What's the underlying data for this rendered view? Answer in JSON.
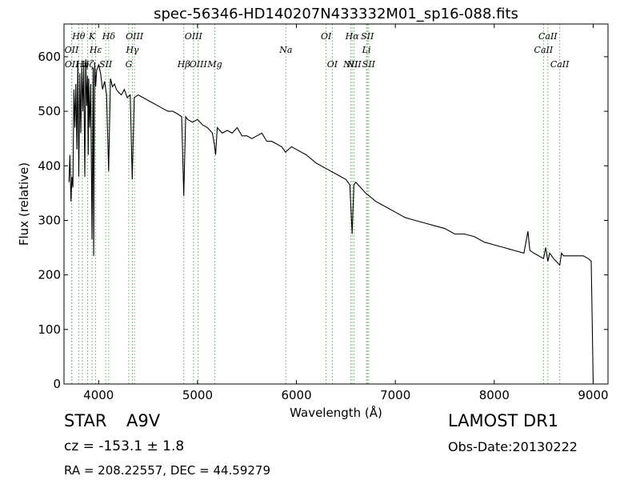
{
  "chart_data": {
    "type": "line",
    "title": "spec-56346-HD140207N433332M01_sp16-088.fits",
    "xlabel": "Wavelength (Å)",
    "ylabel": "Flux (relative)",
    "xlim": [
      3650,
      9150
    ],
    "ylim": [
      0,
      660
    ],
    "xticks": [
      4000,
      5000,
      6000,
      7000,
      8000,
      9000
    ],
    "yticks": [
      0,
      100,
      200,
      300,
      400,
      500,
      600
    ],
    "grid": false,
    "series": [
      {
        "color": "#000000",
        "x": [
          3700,
          3710,
          3720,
          3730,
          3740,
          3750,
          3760,
          3770,
          3780,
          3790,
          3800,
          3810,
          3820,
          3830,
          3840,
          3850,
          3860,
          3870,
          3880,
          3889,
          3895,
          3900,
          3910,
          3920,
          3933,
          3945,
          3950,
          3960,
          3970,
          3980,
          4000,
          4020,
          4040,
          4060,
          4080,
          4101,
          4120,
          4140,
          4160,
          4180,
          4200,
          4230,
          4260,
          4290,
          4320,
          4340,
          4360,
          4400,
          4450,
          4500,
          4550,
          4600,
          4650,
          4700,
          4750,
          4800,
          4840,
          4861,
          4880,
          4900,
          4950,
          5000,
          5050,
          5100,
          5150,
          5170,
          5183,
          5200,
          5250,
          5300,
          5350,
          5400,
          5450,
          5500,
          5550,
          5600,
          5650,
          5700,
          5750,
          5800,
          5850,
          5890,
          5950,
          6000,
          6100,
          6200,
          6300,
          6400,
          6500,
          6540,
          6563,
          6580,
          6600,
          6700,
          6800,
          6900,
          7000,
          7100,
          7200,
          7300,
          7400,
          7500,
          7600,
          7700,
          7800,
          7900,
          8000,
          8100,
          8200,
          8300,
          8340,
          8360,
          8400,
          8498,
          8520,
          8542,
          8560,
          8600,
          8662,
          8680,
          8700,
          8800,
          8900,
          8950,
          8980,
          8990,
          9000,
          9010,
          9020
        ],
        "y": [
          370,
          420,
          335,
          380,
          360,
          540,
          470,
          550,
          430,
          590,
          380,
          570,
          460,
          580,
          500,
          585,
          380,
          595,
          510,
          565,
          420,
          560,
          470,
          550,
          265,
          580,
          235,
          590,
          545,
          575,
          585,
          570,
          540,
          555,
          530,
          390,
          560,
          545,
          550,
          540,
          535,
          530,
          540,
          525,
          530,
          375,
          525,
          530,
          525,
          520,
          515,
          510,
          505,
          500,
          500,
          495,
          490,
          345,
          490,
          485,
          480,
          485,
          475,
          470,
          460,
          440,
          420,
          470,
          460,
          465,
          460,
          470,
          455,
          455,
          450,
          455,
          460,
          445,
          445,
          440,
          435,
          425,
          435,
          430,
          420,
          405,
          395,
          385,
          375,
          365,
          275,
          365,
          370,
          350,
          335,
          325,
          315,
          305,
          300,
          295,
          290,
          285,
          275,
          275,
          270,
          260,
          255,
          250,
          245,
          240,
          280,
          245,
          240,
          230,
          250,
          225,
          240,
          230,
          218,
          240,
          235,
          235,
          235,
          230,
          225,
          120,
          0,
          0,
          0
        ]
      }
    ],
    "line_markers": [
      {
        "label": "Hθ",
        "x": 3798
      },
      {
        "label": "K",
        "x": 3934
      },
      {
        "label": "Hδ",
        "x": 4102
      },
      {
        "label": "OIII",
        "x": 4363
      },
      {
        "label": "OIII",
        "x": 4959
      },
      {
        "label": "OI",
        "x": 6300
      },
      {
        "label": "Hα",
        "x": 6563
      },
      {
        "label": "SII",
        "x": 6717
      },
      {
        "label": "CaII",
        "x": 8542
      },
      {
        "label": "OII",
        "x": 3727
      },
      {
        "label": "Hε",
        "x": 3970
      },
      {
        "label": "Hγ",
        "x": 4341
      },
      {
        "label": "Na",
        "x": 5893
      },
      {
        "label": "Li",
        "x": 6708
      },
      {
        "label": "CaII",
        "x": 8498
      },
      {
        "label": "OII",
        "x": 3729
      },
      {
        "label": "Hζ",
        "x": 3889
      },
      {
        "label": "Hη",
        "x": 3835
      },
      {
        "label": "SII",
        "x": 4072
      },
      {
        "label": "G",
        "x": 4305
      },
      {
        "label": "Hβ",
        "x": 4861
      },
      {
        "label": "OIII",
        "x": 5007
      },
      {
        "label": "Mg",
        "x": 5175
      },
      {
        "label": "OI",
        "x": 6363
      },
      {
        "label": "NII",
        "x": 6548
      },
      {
        "label": "NII",
        "x": 6583
      },
      {
        "label": "SII",
        "x": 6731
      },
      {
        "label": "CaII",
        "x": 8662
      }
    ]
  },
  "info": {
    "class_label": "STAR",
    "subclass": "A9V",
    "survey": "LAMOST DR1",
    "cz_text": "cz = -153.1  ± 1.8",
    "obs_date": "Obs-Date:20130222",
    "coords": "RA = 208.22557, DEC = 44.59279"
  },
  "colors": {
    "spectrum": "#000000",
    "marker_lines": "#80c080",
    "axes": "#000000",
    "background": "#ffffff"
  }
}
